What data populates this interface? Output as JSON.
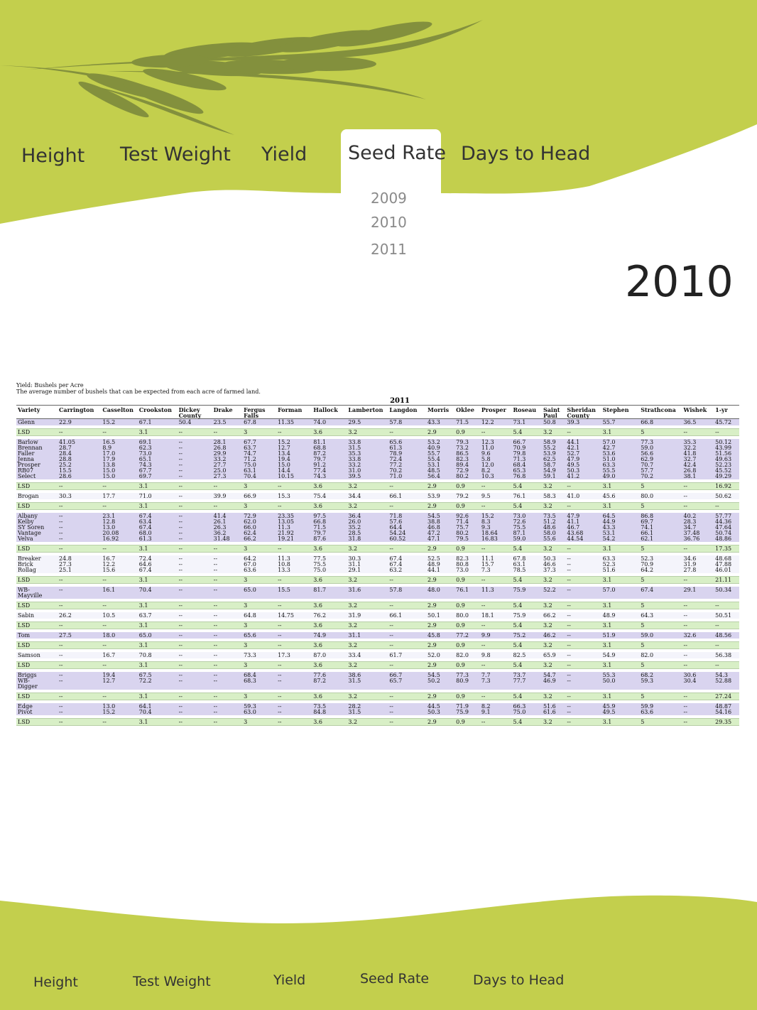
{
  "colors": {
    "accent_green": "#c3cf4d",
    "wheat": "#7d8a3c",
    "lsd_row": "#d8efc6",
    "group_row": "#d9d4ef"
  },
  "icons": {
    "decoration": "wheat-ears-icon"
  },
  "nav": {
    "tabs": [
      "Height",
      "Test Weight",
      "Yield",
      "Seed Rate",
      "Days to Head"
    ],
    "active": "Seed Rate",
    "sub_items": [
      "2009",
      "2010",
      "2011"
    ]
  },
  "page_year": "2010",
  "table": {
    "caption1": "Yield: Bushels per Acre",
    "caption2": "The average number of bushels that can be expected from each acre of farmed land.",
    "title": "2011",
    "headers": [
      "Variety",
      "Carrington",
      "Casselton",
      "Crookston",
      "Dickey County",
      "Drake",
      "Fergus Falls",
      "Forman",
      "Hallock",
      "Lamberton",
      "Langdon",
      "Morris",
      "Oklee",
      "Prosper",
      "Roseau",
      "Saint Paul",
      "Sheridan County",
      "Stephen",
      "Strathcona",
      "Wishek",
      "1-yr"
    ],
    "rows": [
      {
        "t": "grp",
        "c": [
          "Glenn",
          "22.9",
          "15.2",
          "67.1",
          "50.4",
          "23.5",
          "67.8",
          "11.35",
          "74.0",
          "29.5",
          "57.8",
          "43.3",
          "71.5",
          "12.2",
          "73.1",
          "50.8",
          "39.3",
          "55.7",
          "66.8",
          "36.5",
          "45.72"
        ]
      },
      {
        "t": "lsd",
        "c": [
          "LSD",
          "--",
          "--",
          "3.1",
          "--",
          "--",
          "3",
          "--",
          "3.6",
          "3.2",
          "--",
          "2.9",
          "0.9",
          "--",
          "5.4",
          "3.2",
          "--",
          "3.1",
          "5",
          "--",
          "--"
        ]
      },
      {
        "t": "grp",
        "c": [
          "Barlow\nBrennan\nFaller\nJenna\nProsper\nRB07\nSelect",
          "41.05\n28.7\n28.4\n28.8\n25.2\n15.5\n28.6",
          "16.5\n8.9\n17.0\n17.9\n13.8\n15.0\n15.0",
          "69.1\n62.3\n73.0\n65.1\n74.3\n67.7\n69.7",
          "--\n--\n--\n--\n--\n--\n--",
          "28.1\n26.8\n29.9\n33.2\n27.7\n25.0\n27.3",
          "67.7\n63.7\n74.7\n71.2\n75.0\n63.1\n70.4",
          "15.2\n12.7\n13.4\n19.4\n15.0\n14.4\n10.15",
          "81.1\n68.8\n87.2\n79.7\n91.2\n77.4\n74.3",
          "33.8\n31.5\n35.3\n33.8\n33.2\n31.0\n39.5",
          "65.6\n61.3\n78.9\n72.4\n77.2\n70.2\n71.0",
          "53.2\n40.9\n55.7\n55.4\n53.1\n48.5\n56.4",
          "79.3\n73.2\n86.5\n82.3\n89.4\n72.9\n80.2",
          "12.3\n11.0\n9.6\n5.8\n12.0\n8.2\n10.3",
          "66.7\n70.9\n79.8\n71.3\n68.4\n65.3\n76.8",
          "58.9\n55.2\n53.9\n62.5\n58.7\n54.9\n59.1",
          "44.1\n42.1\n52.7\n47.9\n49.5\n50.3\n41.2",
          "57.0\n42.7\n53.6\n51.0\n63.3\n55.5\n49.0",
          "77.3\n59.0\n56.6\n62.9\n70.7\n57.7\n70.2",
          "35.3\n32.2\n41.8\n32.7\n42.4\n26.8\n38.1",
          "50.12\n43.99\n51.56\n49.63\n52.23\n45.52\n49.29"
        ]
      },
      {
        "t": "lsd",
        "c": [
          "LSD",
          "--",
          "--",
          "3.1",
          "--",
          "--",
          "3",
          "--",
          "3.6",
          "3.2",
          "--",
          "2.9",
          "0.9",
          "--",
          "5.4",
          "3.2",
          "--",
          "3.1",
          "5",
          "--",
          "16.92"
        ]
      },
      {
        "t": "wht",
        "c": [
          "Brogan",
          "30.3",
          "17.7",
          "71.0",
          "--",
          "39.9",
          "66.9",
          "15.3",
          "75.4",
          "34.4",
          "66.1",
          "53.9",
          "79.2",
          "9.5",
          "76.1",
          "58.3",
          "41.0",
          "45.6",
          "80.0",
          "--",
          "50.62"
        ]
      },
      {
        "t": "lsd",
        "c": [
          "LSD",
          "--",
          "--",
          "3.1",
          "--",
          "--",
          "3",
          "--",
          "3.6",
          "3.2",
          "--",
          "2.9",
          "0.9",
          "--",
          "5.4",
          "3.2",
          "--",
          "3.1",
          "5",
          "--",
          "--"
        ]
      },
      {
        "t": "grp",
        "c": [
          "Albany\nKelby\nSY Soren\nVantage\nVelva",
          "--\n--\n--\n--\n--",
          "23.1\n12.8\n13.0\n20.08\n16.92",
          "67.4\n63.4\n67.4\n68.0\n61.3",
          "--\n--\n--\n--\n--",
          "41.4\n26.1\n26.3\n36.2\n31.48",
          "72.9\n62.0\n66.0\n62.4\n66.2",
          "23.35\n13.05\n11.3\n21.92\n19.21",
          "97.5\n66.8\n71.5\n79.7\n87.6",
          "36.4\n26.0\n35.2\n28.5\n31.8",
          "71.8\n57.6\n64.4\n54.24\n60.52",
          "54.5\n38.8\n46.8\n47.2\n47.1",
          "92.6\n71.4\n75.7\n80.2\n79.5",
          "15.2\n8.3\n9.3\n18.64\n16.83",
          "73.0\n72.6\n75.5\n87.1\n59.0",
          "73.5\n51.2\n48.6\n58.0\n55.6",
          "47.9\n41.1\n46.7\n43.68\n44.54",
          "64.5\n44.9\n43.3\n53.1\n54.2",
          "86.8\n69.7\n74.1\n66.1\n62.1",
          "40.2\n28.3\n34.7\n37.48\n36.76",
          "57.77\n44.36\n47.64\n50.74\n48.86"
        ]
      },
      {
        "t": "lsd",
        "c": [
          "LSD",
          "--",
          "--",
          "3.1",
          "--",
          "--",
          "3",
          "--",
          "3.6",
          "3.2",
          "--",
          "2.9",
          "0.9",
          "--",
          "5.4",
          "3.2",
          "--",
          "3.1",
          "5",
          "--",
          "17.35"
        ]
      },
      {
        "t": "wht",
        "c": [
          "Breaker\nBrick\nRollag",
          "24.8\n27.3\n25.1",
          "16.7\n12.2\n15.6",
          "72.4\n64.6\n67.4",
          "--\n--\n--",
          "--\n--\n--",
          "64.2\n67.0\n63.6",
          "11.3\n10.8\n13.3",
          "77.5\n75.5\n75.0",
          "30.3\n31.1\n29.1",
          "67.4\n67.4\n63.2",
          "52.5\n48.9\n44.1",
          "82.3\n80.8\n73.0",
          "11.1\n15.7\n7.3",
          "67.8\n63.1\n78.5",
          "50.3\n46.6\n37.3",
          "--\n--\n--",
          "63.3\n52.3\n51.6",
          "52.3\n70.9\n64.2",
          "34.6\n31.9\n27.8",
          "48.68\n47.88\n46.01"
        ]
      },
      {
        "t": "lsd",
        "c": [
          "LSD",
          "--",
          "--",
          "3.1",
          "--",
          "--",
          "3",
          "--",
          "3.6",
          "3.2",
          "--",
          "2.9",
          "0.9",
          "--",
          "5.4",
          "3.2",
          "--",
          "3.1",
          "5",
          "--",
          "21.11"
        ]
      },
      {
        "t": "grp",
        "c": [
          "WB-\nMayville",
          "--",
          "16.1",
          "70.4",
          "--",
          "--",
          "65.0",
          "15.5",
          "81.7",
          "31.6",
          "57.8",
          "48.0",
          "76.1",
          "11.3",
          "75.9",
          "52.2",
          "--",
          "57.0",
          "67.4",
          "29.1",
          "50.34"
        ]
      },
      {
        "t": "lsd",
        "c": [
          "LSD",
          "--",
          "--",
          "3.1",
          "--",
          "--",
          "3",
          "--",
          "3.6",
          "3.2",
          "--",
          "2.9",
          "0.9",
          "--",
          "5.4",
          "3.2",
          "--",
          "3.1",
          "5",
          "--",
          "--"
        ]
      },
      {
        "t": "wht",
        "c": [
          "Sabin",
          "26.2",
          "10.5",
          "63.7",
          "--",
          "--",
          "64.8",
          "14.75",
          "76.2",
          "31.9",
          "66.1",
          "50.1",
          "80.0",
          "18.1",
          "75.9",
          "66.2",
          "--",
          "48.9",
          "64.3",
          "--",
          "50.51"
        ]
      },
      {
        "t": "lsd",
        "c": [
          "LSD",
          "--",
          "--",
          "3.1",
          "--",
          "--",
          "3",
          "--",
          "3.6",
          "3.2",
          "--",
          "2.9",
          "0.9",
          "--",
          "5.4",
          "3.2",
          "--",
          "3.1",
          "5",
          "--",
          "--"
        ]
      },
      {
        "t": "grp",
        "c": [
          "Tom",
          "27.5",
          "18.0",
          "65.0",
          "--",
          "--",
          "65.6",
          "--",
          "74.9",
          "31.1",
          "--",
          "45.8",
          "77.2",
          "9.9",
          "75.2",
          "46.2",
          "--",
          "51.9",
          "59.0",
          "32.6",
          "48.56"
        ]
      },
      {
        "t": "lsd",
        "c": [
          "LSD",
          "--",
          "--",
          "3.1",
          "--",
          "--",
          "3",
          "--",
          "3.6",
          "3.2",
          "--",
          "2.9",
          "0.9",
          "--",
          "5.4",
          "3.2",
          "--",
          "3.1",
          "5",
          "--",
          "--"
        ]
      },
      {
        "t": "wht",
        "c": [
          "Samson",
          "--",
          "16.7",
          "70.8",
          "--",
          "--",
          "73.3",
          "17.3",
          "87.0",
          "33.4",
          "61.7",
          "52.0",
          "82.0",
          "9.8",
          "82.5",
          "65.9",
          "--",
          "54.9",
          "82.0",
          "--",
          "56.38"
        ]
      },
      {
        "t": "lsd",
        "c": [
          "LSD",
          "--",
          "--",
          "3.1",
          "--",
          "--",
          "3",
          "--",
          "3.6",
          "3.2",
          "--",
          "2.9",
          "0.9",
          "--",
          "5.4",
          "3.2",
          "--",
          "3.1",
          "5",
          "--",
          "--"
        ]
      },
      {
        "t": "grp",
        "c": [
          "Briggs\nWB-\nDigger",
          "--\n--",
          "19.4\n12.7",
          "67.5\n72.2",
          "--\n--",
          "--\n--",
          "68.4\n68.3",
          "--\n--",
          "77.6\n87.2",
          "38.6\n31.5",
          "66.7\n65.7",
          "54.5\n50.2",
          "77.3\n80.9",
          "7.7\n7.3",
          "73.7\n77.7",
          "54.7\n46.9",
          "--\n--",
          "55.3\n50.0",
          "68.2\n59.3",
          "30.6\n30.4",
          "54.3\n52.88"
        ]
      },
      {
        "t": "lsd",
        "c": [
          "LSD",
          "--",
          "--",
          "3.1",
          "--",
          "--",
          "3",
          "--",
          "3.6",
          "3.2",
          "--",
          "2.9",
          "0.9",
          "--",
          "5.4",
          "3.2",
          "--",
          "3.1",
          "5",
          "--",
          "27.24"
        ]
      },
      {
        "t": "grp",
        "c": [
          "Edge\nPivot",
          "--\n--",
          "13.0\n15.2",
          "64.1\n70.4",
          "--\n--",
          "--\n--",
          "59.3\n63.0",
          "--\n--",
          "73.5\n84.8",
          "28.2\n31.5",
          "--\n--",
          "44.5\n50.3",
          "71.9\n75.9",
          "8.2\n9.1",
          "66.3\n75.0",
          "51.6\n61.6",
          "--\n--",
          "45.9\n49.5",
          "59.9\n63.6",
          "--\n--",
          "48.87\n54.16"
        ]
      },
      {
        "t": "lsd",
        "c": [
          "LSD",
          "--",
          "--",
          "3.1",
          "--",
          "--",
          "3",
          "--",
          "3.6",
          "3.2",
          "--",
          "2.9",
          "0.9",
          "--",
          "5.4",
          "3.2",
          "--",
          "3.1",
          "5",
          "--",
          "29.35"
        ]
      }
    ]
  }
}
